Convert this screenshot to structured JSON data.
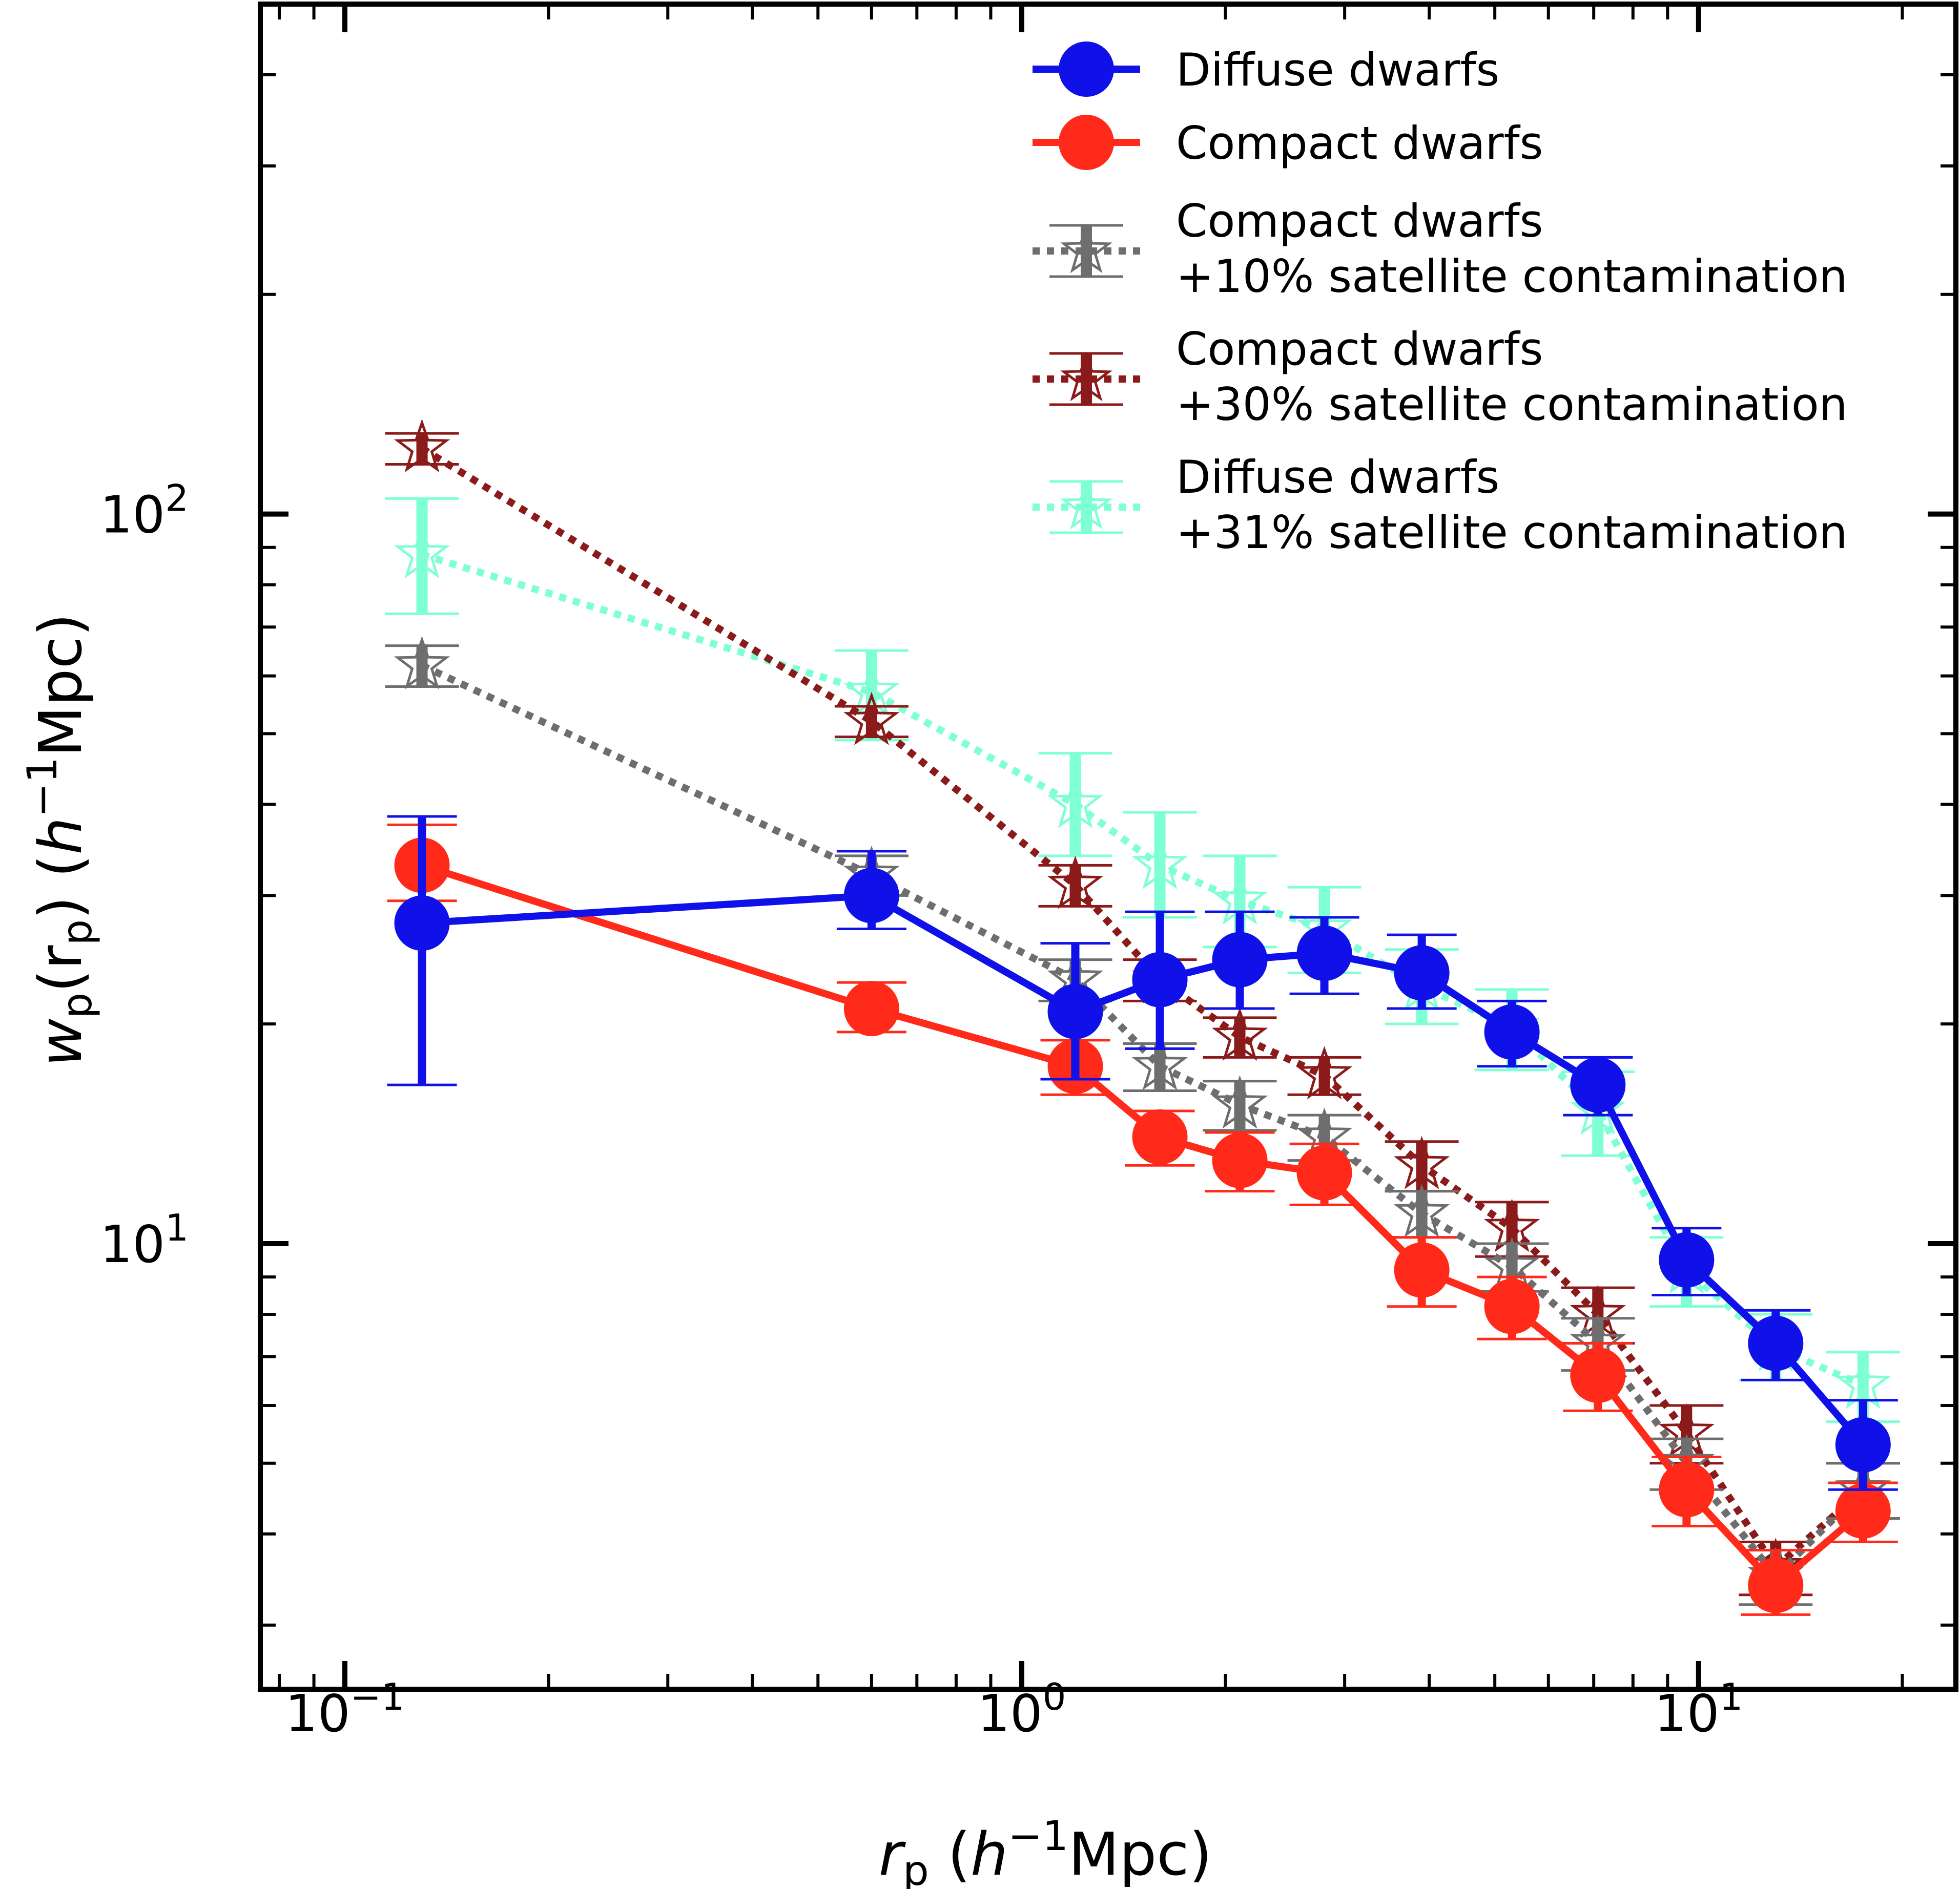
{
  "chart_data": {
    "type": "line",
    "xscale": "log",
    "yscale": "log",
    "xlim": [
      0.075,
      24
    ],
    "ylim": [
      2.45,
      500
    ],
    "xlabel": {
      "var": "r",
      "sub": "p",
      "unit_open": " (",
      "h": "h",
      "exp": "−1",
      "unit_close": "Mpc)"
    },
    "ylabel": {
      "var": "w",
      "sub": "p",
      "mid": "(r",
      "mid_sub": "p",
      "unit_open": ") (",
      "h": "h",
      "exp": "−1",
      "unit_close": "Mpc)"
    },
    "xticks": [
      {
        "value": 0.1,
        "base": "10",
        "exp": "−1"
      },
      {
        "value": 1,
        "base": "10",
        "exp": "0"
      },
      {
        "value": 10,
        "base": "10",
        "exp": "1"
      }
    ],
    "yticks": [
      {
        "value": 10,
        "base": "10",
        "exp": "1"
      },
      {
        "value": 100,
        "base": "10",
        "exp": "2"
      }
    ],
    "legend_position": "top-right",
    "series": [
      {
        "name": "Diffuse dwarfs +31% satellite contamination",
        "legend": [
          "Diffuse dwarfs",
          "+31% satellite contamination"
        ],
        "color": "#7fffd4",
        "style": "dotted",
        "marker": "star",
        "x": [
          0.13,
          0.6,
          1.2,
          1.6,
          2.1,
          2.8,
          3.9,
          5.3,
          7.1,
          9.6,
          13,
          17.5
        ],
        "y": [
          88,
          57,
          40,
          33,
          29.5,
          27,
          22.5,
          19.8,
          15.2,
          9.2,
          7.2,
          6.4
        ],
        "err": [
          [
            15,
            17
          ],
          [
            8,
            8
          ],
          [
            6,
            7
          ],
          [
            5,
            6
          ],
          [
            4,
            4.5
          ],
          [
            3.5,
            3.8
          ],
          [
            2.5,
            2.8
          ],
          [
            2.5,
            2.5
          ],
          [
            2,
            2
          ],
          [
            1,
            1
          ],
          [
            0.7,
            0.8
          ],
          [
            0.7,
            0.7
          ]
        ]
      },
      {
        "name": "Compact dwarfs +30% satellite contamination",
        "legend": [
          "Compact dwarfs",
          "+30% satellite contamination"
        ],
        "color": "#8b1a1a",
        "style": "dotted",
        "marker": "star",
        "x": [
          0.13,
          0.6,
          1.2,
          1.6,
          2.1,
          2.8,
          3.9,
          5.3,
          7.1,
          9.6,
          13,
          17.5
        ],
        "y": [
          123,
          52,
          31,
          23,
          19.2,
          17,
          12.8,
          10.5,
          8.0,
          5.5,
          3.6,
          4.6
        ],
        "err": [
          [
            6,
            6
          ],
          [
            2.5,
            2.5
          ],
          [
            2,
            2
          ],
          [
            1.5,
            1.5
          ],
          [
            1.2,
            1.2
          ],
          [
            1,
            1
          ],
          [
            1,
            1
          ],
          [
            0.9,
            0.9
          ],
          [
            0.7,
            0.7
          ],
          [
            0.5,
            0.5
          ],
          [
            0.3,
            0.3
          ],
          [
            0.4,
            0.4
          ]
        ]
      },
      {
        "name": "Compact dwarfs +10% satellite contamination",
        "legend": [
          "Compact dwarfs",
          "+10% satellite contamination"
        ],
        "color": "#6e6e6e",
        "style": "dotted",
        "marker": "star",
        "x": [
          0.13,
          0.6,
          1.2,
          1.6,
          2.1,
          2.8,
          3.9,
          5.3,
          7.1,
          9.6,
          13,
          17.5
        ],
        "y": [
          62,
          32,
          23,
          17.5,
          15.5,
          14,
          11,
          9.3,
          7.3,
          5,
          3.5,
          4.6
        ],
        "err": [
          [
            4,
            4
          ],
          [
            2,
            2
          ],
          [
            1.5,
            1.5
          ],
          [
            1.3,
            1.3
          ],
          [
            1.2,
            1.2
          ],
          [
            1,
            1
          ],
          [
            0.8,
            0.8
          ],
          [
            0.7,
            0.7
          ],
          [
            0.6,
            0.6
          ],
          [
            0.4,
            0.4
          ],
          [
            0.3,
            0.3
          ],
          [
            0.4,
            0.4
          ]
        ]
      },
      {
        "name": "Compact dwarfs",
        "legend": [
          "Compact dwarfs"
        ],
        "color": "#ff2a1a",
        "style": "solid",
        "marker": "circle",
        "x": [
          0.13,
          0.6,
          1.2,
          1.6,
          2.1,
          2.8,
          3.9,
          5.3,
          7.1,
          9.6,
          13,
          17.5
        ],
        "y": [
          33,
          21,
          17.5,
          14,
          13,
          12.5,
          9.2,
          8.2,
          6.6,
          4.6,
          3.4,
          4.3
        ],
        "err": [
          [
            3.5,
            4.5
          ],
          [
            1.5,
            1.8
          ],
          [
            1.5,
            1.5
          ],
          [
            1.2,
            1.2
          ],
          [
            1.2,
            1.2
          ],
          [
            1.2,
            1.2
          ],
          [
            1,
            1
          ],
          [
            0.8,
            0.8
          ],
          [
            0.7,
            0.7
          ],
          [
            0.5,
            0.5
          ],
          [
            0.3,
            0.4
          ],
          [
            0.4,
            0.4
          ]
        ]
      },
      {
        "name": "Diffuse dwarfs",
        "legend": [
          "Diffuse dwarfs"
        ],
        "color": "#1010e8",
        "style": "solid",
        "marker": "circle",
        "x": [
          0.13,
          0.6,
          1.2,
          1.6,
          2.1,
          2.8,
          3.9,
          5.3,
          7.1,
          9.6,
          13,
          17.5
        ],
        "y": [
          27.5,
          30,
          20.8,
          23,
          24.5,
          25,
          23.5,
          19.5,
          16.5,
          9.5,
          7.3,
          5.3
        ],
        "err": [
          [
            11,
            11
          ],
          [
            3,
            4.5
          ],
          [
            4,
            5
          ],
          [
            4.5,
            5.5
          ],
          [
            3.5,
            4
          ],
          [
            3,
            3
          ],
          [
            2.5,
            3
          ],
          [
            2,
            2
          ],
          [
            1.5,
            1.5
          ],
          [
            1,
            1
          ],
          [
            0.8,
            0.8
          ],
          [
            0.7,
            0.8
          ]
        ]
      }
    ]
  }
}
